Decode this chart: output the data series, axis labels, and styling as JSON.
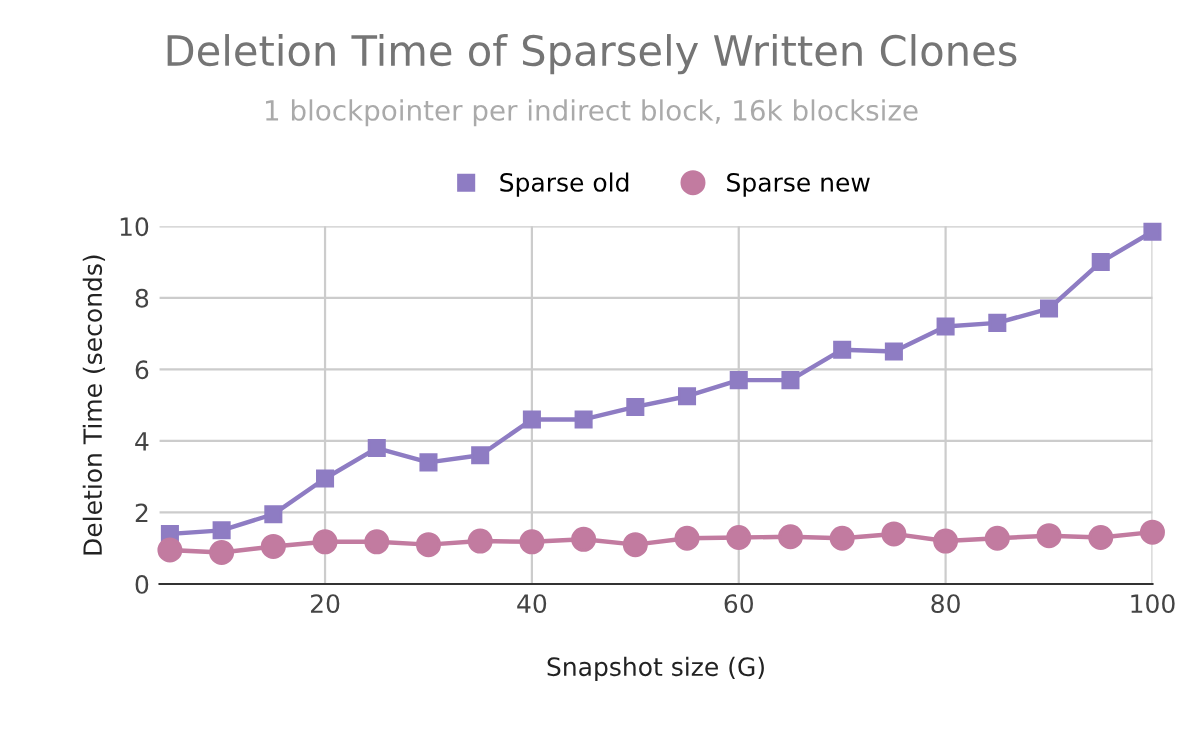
{
  "chart_data": {
    "type": "line",
    "title": "Deletion Time of Sparsely Written Clones",
    "subtitle": "1 blockpointer per indirect block, 16k blocksize",
    "xlabel": "Snapshot size (G)",
    "ylabel": "Deletion Time (seconds)",
    "x": [
      5,
      10,
      15,
      20,
      25,
      30,
      35,
      40,
      45,
      50,
      55,
      60,
      65,
      70,
      75,
      80,
      85,
      90,
      95,
      100
    ],
    "series": [
      {
        "name": "Sparse old",
        "color": "#8e7cc3",
        "marker": "square",
        "values": [
          1.4,
          1.5,
          1.95,
          2.95,
          3.8,
          3.4,
          3.6,
          4.6,
          4.6,
          4.95,
          5.25,
          5.7,
          5.7,
          6.55,
          6.5,
          7.2,
          7.3,
          7.7,
          9.0,
          9.85
        ]
      },
      {
        "name": "Sparse new",
        "color": "#c27ba0",
        "marker": "circle",
        "values": [
          0.95,
          0.88,
          1.05,
          1.18,
          1.18,
          1.1,
          1.2,
          1.18,
          1.25,
          1.1,
          1.28,
          1.3,
          1.32,
          1.28,
          1.4,
          1.2,
          1.28,
          1.35,
          1.3,
          1.45
        ]
      }
    ],
    "xlim": [
      4,
      100
    ],
    "xticks": [
      20,
      40,
      60,
      80,
      100
    ],
    "ylim": [
      0,
      10
    ],
    "yticks": [
      0,
      2,
      4,
      6,
      8,
      10
    ],
    "grid": true,
    "legend": "top"
  }
}
